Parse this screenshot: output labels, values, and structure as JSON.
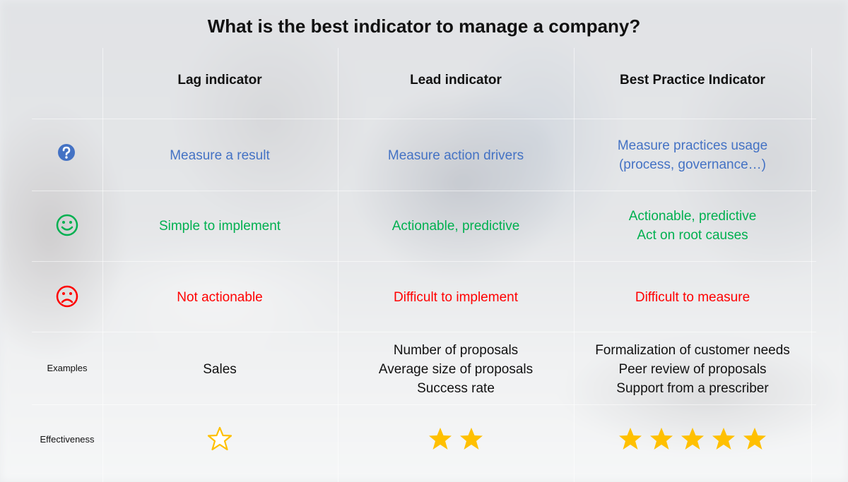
{
  "title": "What is the best indicator to manage a company?",
  "columns": [
    {
      "header": "Lag indicator"
    },
    {
      "header": "Lead indicator"
    },
    {
      "header": "Best Practice Indicator"
    }
  ],
  "rows": {
    "what": {
      "icon": "question-icon",
      "color": "#4472c4",
      "cells": [
        [
          "Measure a result"
        ],
        [
          "Measure action drivers"
        ],
        [
          "Measure practices usage",
          "(process, governance…)"
        ]
      ]
    },
    "pros": {
      "icon": "smiley-icon",
      "color": "#00b050",
      "cells": [
        [
          "Simple to implement"
        ],
        [
          "Actionable, predictive"
        ],
        [
          "Actionable, predictive",
          "Act on root causes"
        ]
      ]
    },
    "cons": {
      "icon": "frown-icon",
      "color": "#ff0000",
      "cells": [
        [
          "Not actionable"
        ],
        [
          "Difficult to implement"
        ],
        [
          "Difficult to measure"
        ]
      ]
    },
    "examples": {
      "label": "Examples",
      "cells": [
        [
          "Sales"
        ],
        [
          "Number of proposals",
          "Average size of proposals",
          "Success rate"
        ],
        [
          "Formalization of customer needs",
          "Peer review of proposals",
          "Support from a prescriber"
        ]
      ]
    },
    "effectiveness": {
      "label": "Effectiveness",
      "star_color": "#ffc000",
      "stars": [
        1,
        2,
        5
      ],
      "outline_only": [
        true,
        false,
        false
      ]
    }
  }
}
